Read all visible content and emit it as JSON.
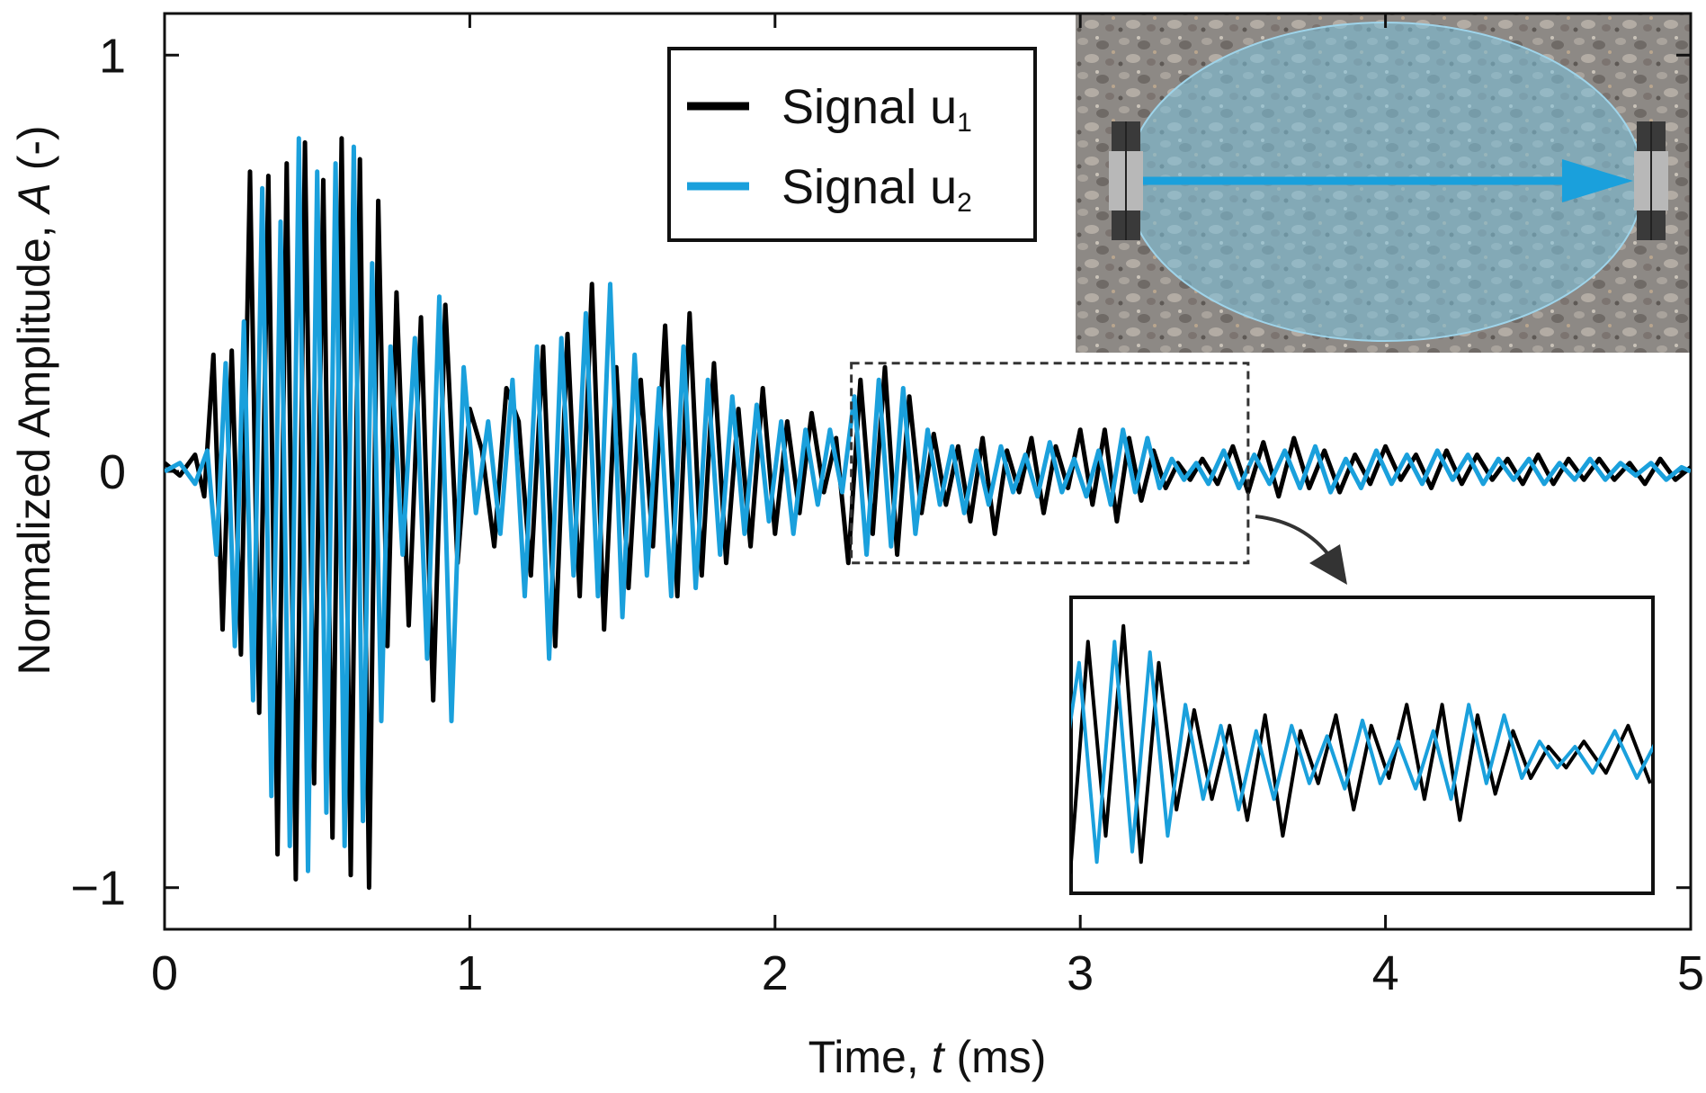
{
  "chart_data": {
    "type": "line",
    "title": "",
    "xlabel": "Time, t (ms)",
    "xlabel_parts": [
      "Time, ",
      "t",
      " (ms)"
    ],
    "ylabel": "Normalized Amplitude, A (-)",
    "ylabel_parts": [
      "Normalized Amplitude, ",
      "A",
      " (-)"
    ],
    "xlim": [
      0,
      5
    ],
    "ylim": [
      -1.1,
      1.1
    ],
    "xticks": [
      0,
      1,
      2,
      3,
      4,
      5
    ],
    "yticks": [
      {
        "value": -1,
        "label": "−1"
      },
      {
        "value": 0,
        "label": "0"
      },
      {
        "value": 1,
        "label": "1"
      }
    ],
    "grid": false,
    "legend_position": "top-center",
    "series": [
      {
        "name": "Signal u1",
        "legend_main": "Signal u",
        "legend_sub": "1",
        "color": "#000000",
        "x": [
          0,
          0.05,
          0.1,
          0.13,
          0.16,
          0.19,
          0.22,
          0.25,
          0.28,
          0.31,
          0.34,
          0.37,
          0.4,
          0.43,
          0.46,
          0.49,
          0.52,
          0.55,
          0.58,
          0.61,
          0.64,
          0.67,
          0.7,
          0.73,
          0.76,
          0.8,
          0.84,
          0.88,
          0.92,
          0.96,
          1.0,
          1.04,
          1.08,
          1.12,
          1.16,
          1.2,
          1.24,
          1.28,
          1.32,
          1.36,
          1.4,
          1.44,
          1.48,
          1.52,
          1.56,
          1.6,
          1.64,
          1.68,
          1.72,
          1.76,
          1.8,
          1.84,
          1.88,
          1.92,
          1.96,
          2.0,
          2.04,
          2.08,
          2.12,
          2.16,
          2.2,
          2.24,
          2.28,
          2.32,
          2.36,
          2.4,
          2.44,
          2.48,
          2.52,
          2.56,
          2.6,
          2.64,
          2.68,
          2.72,
          2.76,
          2.8,
          2.84,
          2.88,
          2.92,
          2.96,
          3.0,
          3.04,
          3.08,
          3.12,
          3.16,
          3.2,
          3.24,
          3.28,
          3.32,
          3.36,
          3.4,
          3.45,
          3.5,
          3.55,
          3.6,
          3.65,
          3.7,
          3.75,
          3.8,
          3.85,
          3.9,
          3.95,
          4.0,
          4.05,
          4.1,
          4.15,
          4.2,
          4.25,
          4.3,
          4.35,
          4.4,
          4.45,
          4.5,
          4.55,
          4.6,
          4.65,
          4.7,
          4.75,
          4.8,
          4.85,
          4.9,
          4.95,
          5.0
        ],
        "y": [
          0.02,
          -0.01,
          0.04,
          -0.06,
          0.28,
          -0.38,
          0.29,
          -0.44,
          0.72,
          -0.58,
          0.71,
          -0.92,
          0.74,
          -0.98,
          0.79,
          -0.75,
          0.7,
          -0.88,
          0.8,
          -0.97,
          0.75,
          -1.0,
          0.65,
          -0.42,
          0.43,
          -0.37,
          0.37,
          -0.55,
          0.4,
          -0.22,
          0.15,
          0.05,
          -0.18,
          0.2,
          0.12,
          -0.25,
          0.3,
          -0.42,
          0.33,
          -0.3,
          0.45,
          -0.38,
          0.25,
          -0.28,
          0.22,
          -0.18,
          0.35,
          -0.3,
          0.38,
          -0.25,
          0.26,
          -0.22,
          0.15,
          -0.18,
          0.2,
          -0.15,
          0.12,
          -0.1,
          0.14,
          -0.05,
          0.08,
          -0.22,
          0.22,
          -0.15,
          0.25,
          -0.2,
          0.18,
          -0.1,
          0.09,
          -0.08,
          0.06,
          -0.12,
          0.08,
          -0.15,
          0.05,
          -0.05,
          0.08,
          -0.1,
          0.06,
          -0.04,
          0.1,
          -0.08,
          0.1,
          -0.12,
          0.08,
          -0.07,
          0.05,
          -0.04,
          0.02,
          -0.02,
          0.03,
          -0.03,
          0.06,
          -0.05,
          0.07,
          -0.06,
          0.08,
          -0.04,
          0.05,
          -0.05,
          0.04,
          -0.03,
          0.06,
          -0.02,
          0.04,
          -0.04,
          0.05,
          -0.03,
          0.04,
          -0.02,
          0.03,
          -0.03,
          0.04,
          -0.03,
          0.03,
          -0.02,
          0.03,
          -0.02,
          0.02,
          -0.03,
          0.03,
          -0.02,
          0.01
        ]
      },
      {
        "name": "Signal u2",
        "legend_main": "Signal u",
        "legend_sub": "2",
        "color": "#1aa0dc",
        "x": [
          0,
          0.05,
          0.1,
          0.14,
          0.17,
          0.2,
          0.23,
          0.26,
          0.29,
          0.32,
          0.35,
          0.38,
          0.41,
          0.44,
          0.47,
          0.5,
          0.53,
          0.56,
          0.59,
          0.62,
          0.65,
          0.68,
          0.71,
          0.74,
          0.78,
          0.82,
          0.86,
          0.9,
          0.94,
          0.98,
          1.02,
          1.06,
          1.1,
          1.14,
          1.18,
          1.22,
          1.26,
          1.3,
          1.34,
          1.38,
          1.42,
          1.46,
          1.5,
          1.54,
          1.58,
          1.62,
          1.66,
          1.7,
          1.74,
          1.78,
          1.82,
          1.86,
          1.9,
          1.94,
          1.98,
          2.02,
          2.06,
          2.1,
          2.14,
          2.18,
          2.22,
          2.26,
          2.3,
          2.34,
          2.38,
          2.42,
          2.46,
          2.5,
          2.54,
          2.58,
          2.62,
          2.66,
          2.7,
          2.74,
          2.78,
          2.82,
          2.86,
          2.9,
          2.94,
          2.98,
          3.02,
          3.06,
          3.1,
          3.14,
          3.18,
          3.22,
          3.26,
          3.3,
          3.34,
          3.38,
          3.42,
          3.47,
          3.52,
          3.57,
          3.62,
          3.67,
          3.72,
          3.77,
          3.82,
          3.87,
          3.92,
          3.97,
          4.02,
          4.07,
          4.12,
          4.17,
          4.22,
          4.27,
          4.32,
          4.37,
          4.42,
          4.47,
          4.52,
          4.57,
          4.62,
          4.67,
          4.72,
          4.77,
          4.82,
          4.87,
          4.92,
          4.97,
          5.0
        ],
        "y": [
          0.0,
          0.02,
          -0.03,
          0.05,
          -0.2,
          0.26,
          -0.42,
          0.36,
          -0.55,
          0.68,
          -0.78,
          0.6,
          -0.9,
          0.8,
          -0.96,
          0.72,
          -0.82,
          0.74,
          -0.9,
          0.78,
          -0.84,
          0.5,
          -0.6,
          0.3,
          -0.2,
          0.32,
          -0.45,
          0.42,
          -0.6,
          0.25,
          -0.1,
          0.12,
          -0.15,
          0.22,
          -0.3,
          0.3,
          -0.45,
          0.32,
          -0.25,
          0.38,
          -0.3,
          0.45,
          -0.35,
          0.28,
          -0.25,
          0.2,
          -0.3,
          0.3,
          -0.28,
          0.22,
          -0.2,
          0.18,
          -0.15,
          0.16,
          -0.12,
          0.12,
          -0.15,
          0.1,
          -0.08,
          0.1,
          -0.05,
          0.18,
          -0.2,
          0.22,
          -0.18,
          0.2,
          -0.15,
          0.1,
          -0.08,
          0.06,
          -0.1,
          0.05,
          -0.08,
          0.06,
          -0.05,
          0.04,
          -0.06,
          0.07,
          -0.05,
          0.03,
          -0.06,
          0.05,
          -0.08,
          0.1,
          -0.05,
          0.08,
          -0.04,
          0.03,
          -0.02,
          0.02,
          -0.03,
          0.05,
          -0.04,
          0.04,
          -0.03,
          0.05,
          -0.04,
          0.06,
          -0.05,
          0.03,
          -0.04,
          0.05,
          -0.03,
          0.04,
          -0.03,
          0.05,
          -0.02,
          0.04,
          -0.03,
          0.03,
          -0.02,
          0.03,
          -0.03,
          0.02,
          -0.02,
          0.03,
          -0.02,
          0.02,
          -0.01,
          0.02,
          -0.02,
          0.01,
          0.0
        ]
      }
    ],
    "zoom_window": {
      "x": [
        2.25,
        3.55
      ],
      "y": [
        -0.22,
        0.26
      ]
    }
  }
}
